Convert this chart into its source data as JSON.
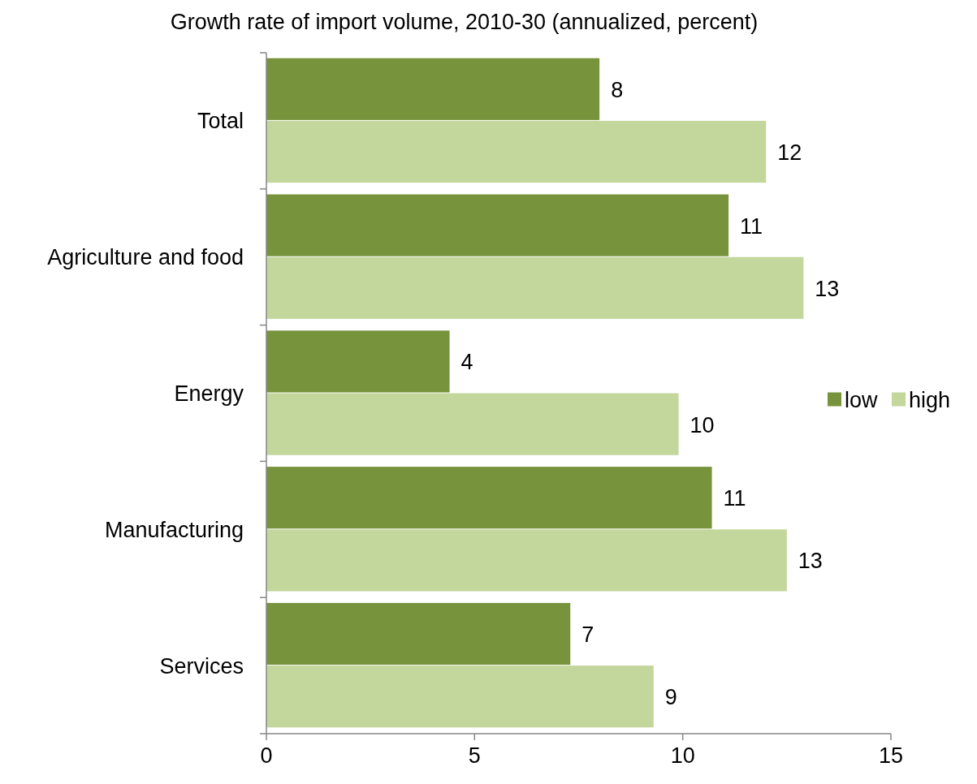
{
  "chart_data": {
    "type": "bar",
    "orientation": "horizontal",
    "title": "Growth rate of import volume, 2010-30 (annualized, percent)",
    "categories": [
      "Total",
      "Agriculture and food",
      "Energy",
      "Manufacturing",
      "Services"
    ],
    "series": [
      {
        "name": "low",
        "color": "#77933c",
        "values": [
          8.0,
          11.1,
          4.4,
          10.7,
          7.3
        ],
        "value_labels": [
          "8",
          "11",
          "4",
          "11",
          "7"
        ]
      },
      {
        "name": "high",
        "color": "#c3d69b",
        "values": [
          12.0,
          12.9,
          9.9,
          12.5,
          9.3
        ],
        "value_labels": [
          "12",
          "13",
          "10",
          "13",
          "9"
        ]
      }
    ],
    "xlim": [
      0,
      15
    ],
    "xticks": [
      0,
      5,
      10,
      15
    ],
    "legend": "right",
    "grid": false
  }
}
